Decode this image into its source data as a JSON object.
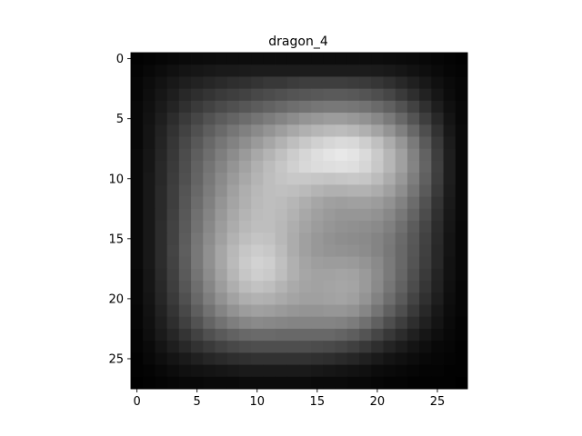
{
  "chart_data": {
    "type": "heatmap",
    "title": "dragon_4",
    "colormap": "gray",
    "shape": [
      28,
      28
    ],
    "xlim": [
      -0.5,
      27.5
    ],
    "ylim": [
      27.5,
      -0.5
    ],
    "xticks": [
      0,
      5,
      10,
      15,
      20,
      25
    ],
    "yticks": [
      0,
      5,
      10,
      15,
      20,
      25
    ],
    "xtick_labels": [
      "0",
      "5",
      "10",
      "15",
      "20",
      "25"
    ],
    "ytick_labels": [
      "0",
      "5",
      "10",
      "15",
      "20",
      "25"
    ],
    "grid": false,
    "value_range": [
      0,
      255
    ],
    "values": [
      [
        2,
        4,
        6,
        8,
        10,
        11,
        12,
        13,
        13,
        13,
        13,
        13,
        13,
        13,
        13,
        13,
        13,
        13,
        13,
        13,
        13,
        12,
        11,
        10,
        8,
        6,
        4,
        2
      ],
      [
        4,
        8,
        12,
        16,
        20,
        22,
        24,
        26,
        26,
        27,
        28,
        28,
        28,
        28,
        28,
        28,
        28,
        28,
        28,
        28,
        27,
        25,
        22,
        18,
        14,
        10,
        6,
        4
      ],
      [
        6,
        12,
        18,
        24,
        30,
        34,
        38,
        42,
        46,
        48,
        52,
        56,
        56,
        60,
        62,
        62,
        62,
        62,
        60,
        58,
        54,
        48,
        40,
        32,
        24,
        16,
        10,
        6
      ],
      [
        6,
        14,
        22,
        30,
        40,
        46,
        52,
        58,
        62,
        66,
        72,
        76,
        80,
        84,
        86,
        88,
        90,
        90,
        88,
        84,
        78,
        70,
        58,
        46,
        34,
        22,
        12,
        6
      ],
      [
        8,
        16,
        26,
        36,
        48,
        58,
        66,
        74,
        80,
        86,
        92,
        98,
        104,
        110,
        114,
        118,
        120,
        120,
        118,
        114,
        106,
        96,
        82,
        66,
        48,
        30,
        16,
        8
      ],
      [
        8,
        18,
        30,
        44,
        58,
        70,
        82,
        92,
        100,
        108,
        116,
        124,
        132,
        140,
        148,
        152,
        156,
        156,
        152,
        146,
        136,
        122,
        104,
        84,
        62,
        40,
        20,
        8
      ],
      [
        8,
        20,
        34,
        50,
        66,
        80,
        94,
        106,
        118,
        128,
        138,
        148,
        158,
        168,
        176,
        182,
        186,
        188,
        184,
        176,
        164,
        148,
        128,
        104,
        78,
        50,
        24,
        10
      ],
      [
        8,
        20,
        36,
        54,
        72,
        88,
        104,
        118,
        130,
        142,
        154,
        166,
        178,
        190,
        200,
        208,
        214,
        218,
        216,
        206,
        192,
        172,
        150,
        122,
        90,
        58,
        28,
        10
      ],
      [
        10,
        22,
        38,
        56,
        76,
        94,
        110,
        126,
        140,
        154,
        168,
        180,
        192,
        204,
        214,
        222,
        228,
        232,
        228,
        218,
        202,
        182,
        160,
        130,
        98,
        62,
        30,
        10
      ],
      [
        10,
        22,
        40,
        58,
        78,
        98,
        116,
        132,
        148,
        162,
        176,
        188,
        198,
        208,
        216,
        220,
        222,
        224,
        222,
        214,
        200,
        182,
        160,
        132,
        100,
        64,
        30,
        10
      ],
      [
        10,
        24,
        40,
        60,
        80,
        100,
        120,
        138,
        154,
        168,
        180,
        190,
        196,
        200,
        200,
        198,
        196,
        198,
        200,
        198,
        188,
        172,
        152,
        126,
        96,
        62,
        30,
        10
      ],
      [
        10,
        24,
        42,
        62,
        84,
        104,
        124,
        142,
        160,
        174,
        184,
        190,
        192,
        190,
        186,
        180,
        176,
        176,
        178,
        178,
        172,
        160,
        142,
        118,
        90,
        58,
        28,
        10
      ],
      [
        10,
        24,
        42,
        62,
        86,
        108,
        128,
        148,
        164,
        176,
        186,
        190,
        188,
        182,
        174,
        166,
        160,
        158,
        160,
        160,
        156,
        146,
        130,
        108,
        82,
        52,
        26,
        10
      ],
      [
        10,
        24,
        42,
        64,
        88,
        112,
        132,
        152,
        168,
        180,
        188,
        190,
        186,
        178,
        168,
        160,
        154,
        150,
        150,
        150,
        146,
        136,
        120,
        100,
        76,
        48,
        24,
        10
      ],
      [
        10,
        24,
        44,
        66,
        90,
        114,
        136,
        156,
        172,
        184,
        190,
        190,
        184,
        174,
        164,
        156,
        150,
        146,
        144,
        142,
        138,
        128,
        112,
        92,
        70,
        44,
        22,
        8
      ],
      [
        10,
        24,
        44,
        66,
        92,
        118,
        140,
        160,
        178,
        190,
        196,
        194,
        184,
        172,
        160,
        152,
        146,
        142,
        140,
        138,
        132,
        122,
        106,
        88,
        66,
        42,
        20,
        8
      ],
      [
        10,
        24,
        44,
        68,
        94,
        120,
        144,
        166,
        184,
        198,
        204,
        200,
        188,
        172,
        160,
        152,
        148,
        146,
        144,
        140,
        132,
        120,
        104,
        86,
        64,
        40,
        20,
        8
      ],
      [
        10,
        24,
        44,
        66,
        92,
        120,
        144,
        166,
        186,
        202,
        210,
        206,
        192,
        176,
        164,
        158,
        156,
        156,
        154,
        148,
        138,
        122,
        104,
        84,
        62,
        40,
        18,
        8
      ],
      [
        8,
        22,
        42,
        64,
        90,
        116,
        140,
        162,
        182,
        198,
        206,
        202,
        190,
        176,
        166,
        162,
        162,
        164,
        162,
        154,
        140,
        122,
        102,
        80,
        58,
        36,
        18,
        8
      ],
      [
        8,
        22,
        40,
        62,
        86,
        110,
        134,
        156,
        174,
        188,
        194,
        190,
        180,
        170,
        164,
        162,
        164,
        166,
        164,
        154,
        138,
        118,
        98,
        76,
        54,
        34,
        16,
        6
      ],
      [
        8,
        20,
        38,
        58,
        80,
        104,
        126,
        146,
        162,
        174,
        178,
        176,
        170,
        164,
        160,
        160,
        162,
        164,
        160,
        148,
        130,
        110,
        90,
        68,
        48,
        30,
        14,
        6
      ],
      [
        6,
        18,
        34,
        52,
        72,
        94,
        114,
        132,
        146,
        156,
        160,
        158,
        154,
        150,
        148,
        148,
        150,
        150,
        146,
        134,
        116,
        96,
        78,
        58,
        40,
        24,
        12,
        6
      ],
      [
        6,
        16,
        30,
        46,
        64,
        82,
        100,
        114,
        126,
        134,
        138,
        136,
        134,
        132,
        132,
        132,
        132,
        130,
        124,
        112,
        96,
        78,
        62,
        46,
        32,
        20,
        10,
        4
      ],
      [
        4,
        14,
        26,
        38,
        52,
        66,
        80,
        90,
        98,
        104,
        106,
        106,
        104,
        104,
        104,
        104,
        104,
        100,
        94,
        84,
        70,
        56,
        44,
        32,
        22,
        14,
        8,
        4
      ],
      [
        4,
        10,
        20,
        30,
        40,
        50,
        58,
        66,
        72,
        76,
        78,
        78,
        78,
        78,
        78,
        76,
        74,
        70,
        64,
        56,
        46,
        36,
        28,
        20,
        14,
        8,
        6,
        2
      ],
      [
        2,
        8,
        14,
        20,
        26,
        32,
        38,
        42,
        46,
        48,
        50,
        50,
        50,
        50,
        50,
        48,
        46,
        42,
        38,
        32,
        26,
        20,
        16,
        12,
        8,
        6,
        4,
        2
      ],
      [
        2,
        4,
        8,
        12,
        16,
        18,
        20,
        22,
        24,
        26,
        26,
        26,
        26,
        26,
        26,
        24,
        22,
        20,
        18,
        16,
        12,
        10,
        8,
        6,
        4,
        4,
        2,
        2
      ],
      [
        0,
        2,
        4,
        6,
        8,
        8,
        10,
        10,
        10,
        12,
        12,
        12,
        12,
        12,
        12,
        10,
        10,
        10,
        8,
        8,
        6,
        4,
        4,
        2,
        2,
        2,
        2,
        0
      ]
    ]
  }
}
